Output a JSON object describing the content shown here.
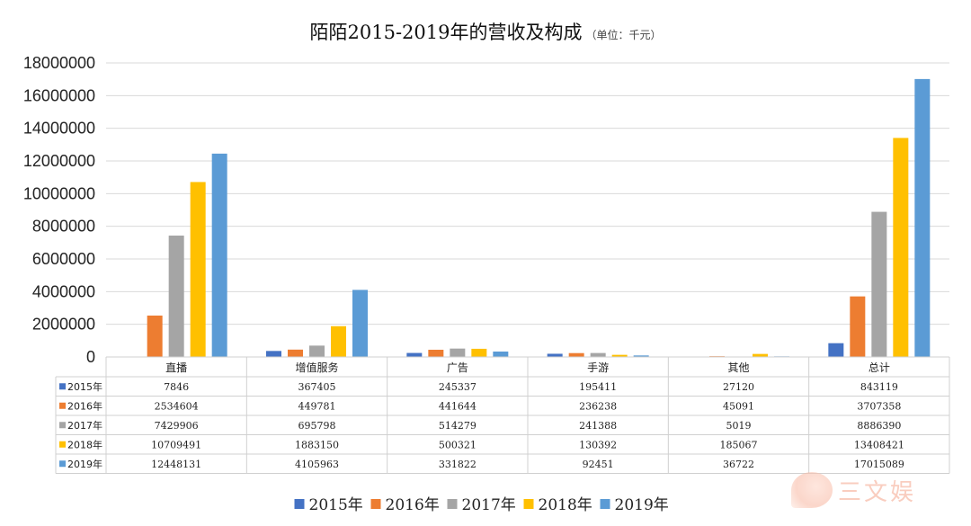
{
  "title": {
    "main": "陌陌2015-2019年的营收及构成",
    "unit": "（单位：千元）"
  },
  "watermark": {
    "text": "三文娱"
  },
  "chart_data": {
    "type": "bar",
    "categories": [
      "直播",
      "增值服务",
      "广告",
      "手游",
      "其他",
      "总计"
    ],
    "series": [
      {
        "name": "2015年",
        "color": "#4472c4",
        "values": [
          7846,
          367405,
          245337,
          195411,
          27120,
          843119
        ]
      },
      {
        "name": "2016年",
        "color": "#ed7d31",
        "values": [
          2534604,
          449781,
          441644,
          236238,
          45091,
          3707358
        ]
      },
      {
        "name": "2017年",
        "color": "#a5a5a5",
        "values": [
          7429906,
          695798,
          514279,
          241388,
          5019,
          8886390
        ]
      },
      {
        "name": "2018年",
        "color": "#ffc000",
        "values": [
          10709491,
          1883150,
          500321,
          130392,
          185067,
          13408421
        ]
      },
      {
        "name": "2019年",
        "color": "#5b9bd5",
        "values": [
          12448131,
          4105963,
          331822,
          92451,
          36722,
          17015089
        ]
      }
    ],
    "ylim": [
      0,
      18000000
    ],
    "yticks": [
      "0",
      "2000000",
      "4000000",
      "6000000",
      "8000000",
      "10000000",
      "12000000",
      "14000000",
      "16000000",
      "18000000"
    ],
    "grid": true,
    "legend_position": "bottom",
    "data_table": true
  }
}
